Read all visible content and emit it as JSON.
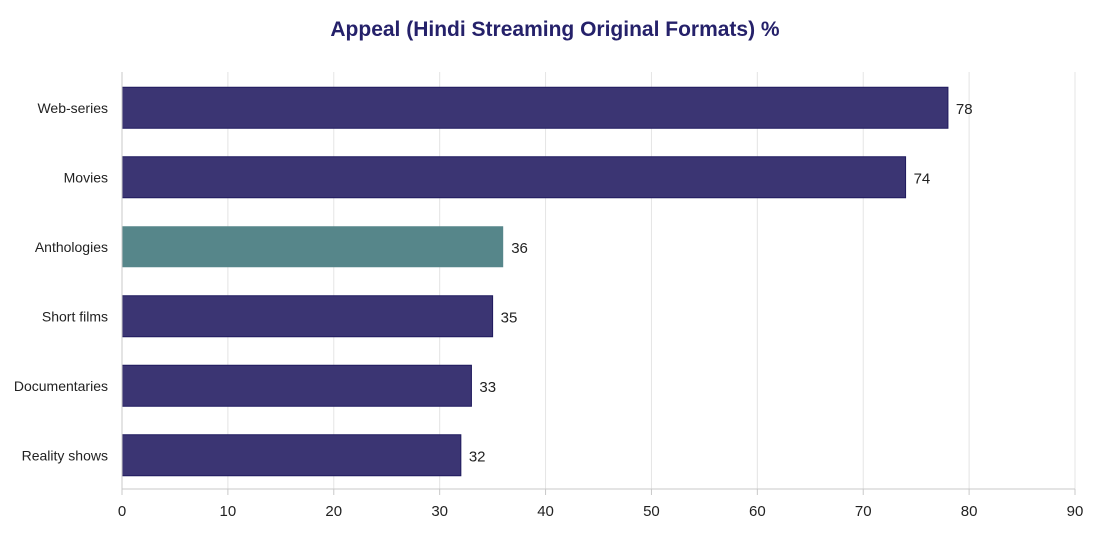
{
  "chart_data": {
    "type": "bar",
    "orientation": "horizontal",
    "title": "Appeal (Hindi Streaming Original Formats) %",
    "xlabel": "",
    "ylabel": "",
    "categories": [
      "Web-series",
      "Movies",
      "Anthologies",
      "Short films",
      "Documentaries",
      "Reality shows"
    ],
    "values": [
      78,
      74,
      36,
      35,
      33,
      32
    ],
    "highlight_index": 2,
    "xlim": [
      0,
      90
    ],
    "xticks": [
      0,
      10,
      20,
      30,
      40,
      50,
      60,
      70,
      80,
      90
    ],
    "grid": "vertical",
    "legend": "none",
    "colors": {
      "bar": "#3b3573",
      "bar_highlight": "#56868a",
      "bar_stroke": "#1f1a5e",
      "title": "#25216a",
      "grid": "#e4e4e4",
      "axis": "#c8c8c8",
      "text": "#222222"
    }
  }
}
